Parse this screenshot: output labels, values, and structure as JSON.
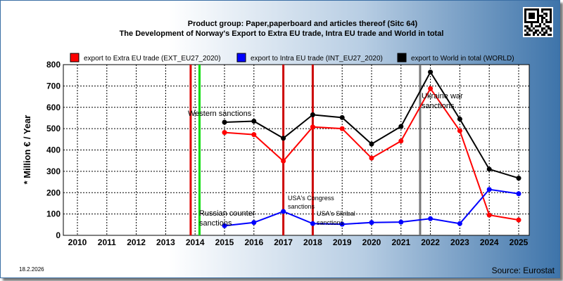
{
  "header": {
    "title_line1": "Product group: Paper,paperboard and articles thereof (Sitc 64)",
    "title_line2": "The Development of Norway's Export to Extra EU trade, Intra EU trade and World in total"
  },
  "footer": {
    "date": "18.2.2026",
    "source": "Source: Eurostat"
  },
  "colors": {
    "extra": "#ff0000",
    "intra": "#0000ff",
    "world": "#000000"
  },
  "chart_data": {
    "type": "line",
    "ylabel": "* Million € / Year",
    "ylim": [
      0,
      800
    ],
    "yticks": [
      0,
      100,
      200,
      300,
      400,
      500,
      600,
      700,
      800
    ],
    "x": [
      2010,
      2011,
      2012,
      2013,
      2014,
      2015,
      2016,
      2017,
      2018,
      2019,
      2020,
      2021,
      2022,
      2023,
      2024,
      2025
    ],
    "x_labels": [
      "2010",
      "2011",
      "2012",
      "2013",
      "2014",
      "2015",
      "2016",
      "2017",
      "2018",
      "2019",
      "2020",
      "2021",
      "2022",
      "2023",
      "2024",
      "2025"
    ],
    "grid": true,
    "legend_position": "top",
    "series": [
      {
        "key": "extra",
        "name": "export to Extra EU trade (EXT_EU27_2020)",
        "color": "#ff0000",
        "values": [
          null,
          null,
          null,
          null,
          null,
          482,
          472,
          348,
          508,
          500,
          362,
          442,
          688,
          490,
          95,
          72
        ]
      },
      {
        "key": "intra",
        "name": "export to Intra EU trade (INT_EU27_2020)",
        "color": "#0000ff",
        "values": [
          null,
          null,
          null,
          null,
          null,
          45,
          60,
          112,
          55,
          52,
          60,
          62,
          78,
          55,
          215,
          195
        ]
      },
      {
        "key": "world",
        "name": "export to World in total (WORLD)",
        "color": "#000000",
        "values": [
          null,
          null,
          null,
          null,
          null,
          530,
          535,
          455,
          565,
          552,
          428,
          510,
          765,
          545,
          310,
          268
        ]
      }
    ],
    "event_lines": [
      {
        "year": 2013.85,
        "color": "#e00000"
      },
      {
        "year": 2014.15,
        "color": "#00dd00"
      },
      {
        "year": 2017.0,
        "color": "#cc0000"
      },
      {
        "year": 2018.0,
        "color": "#cc0000"
      },
      {
        "year": 2021.65,
        "color": "#777777"
      }
    ],
    "annotations": [
      {
        "key": "western",
        "text": "Western sanctions"
      },
      {
        "key": "russian1",
        "text": "Russian counter"
      },
      {
        "key": "russian2",
        "text": "sanctions"
      },
      {
        "key": "usa1",
        "text": "USA's Congress"
      },
      {
        "key": "usa2",
        "text": "sanctions"
      },
      {
        "key": "skripal1",
        "text": "USA's Skribal"
      },
      {
        "key": "skripal2",
        "text": "sanctions"
      },
      {
        "key": "ukraine1",
        "text": "Ukraine war"
      },
      {
        "key": "ukraine2",
        "text": "sanctions"
      }
    ]
  }
}
